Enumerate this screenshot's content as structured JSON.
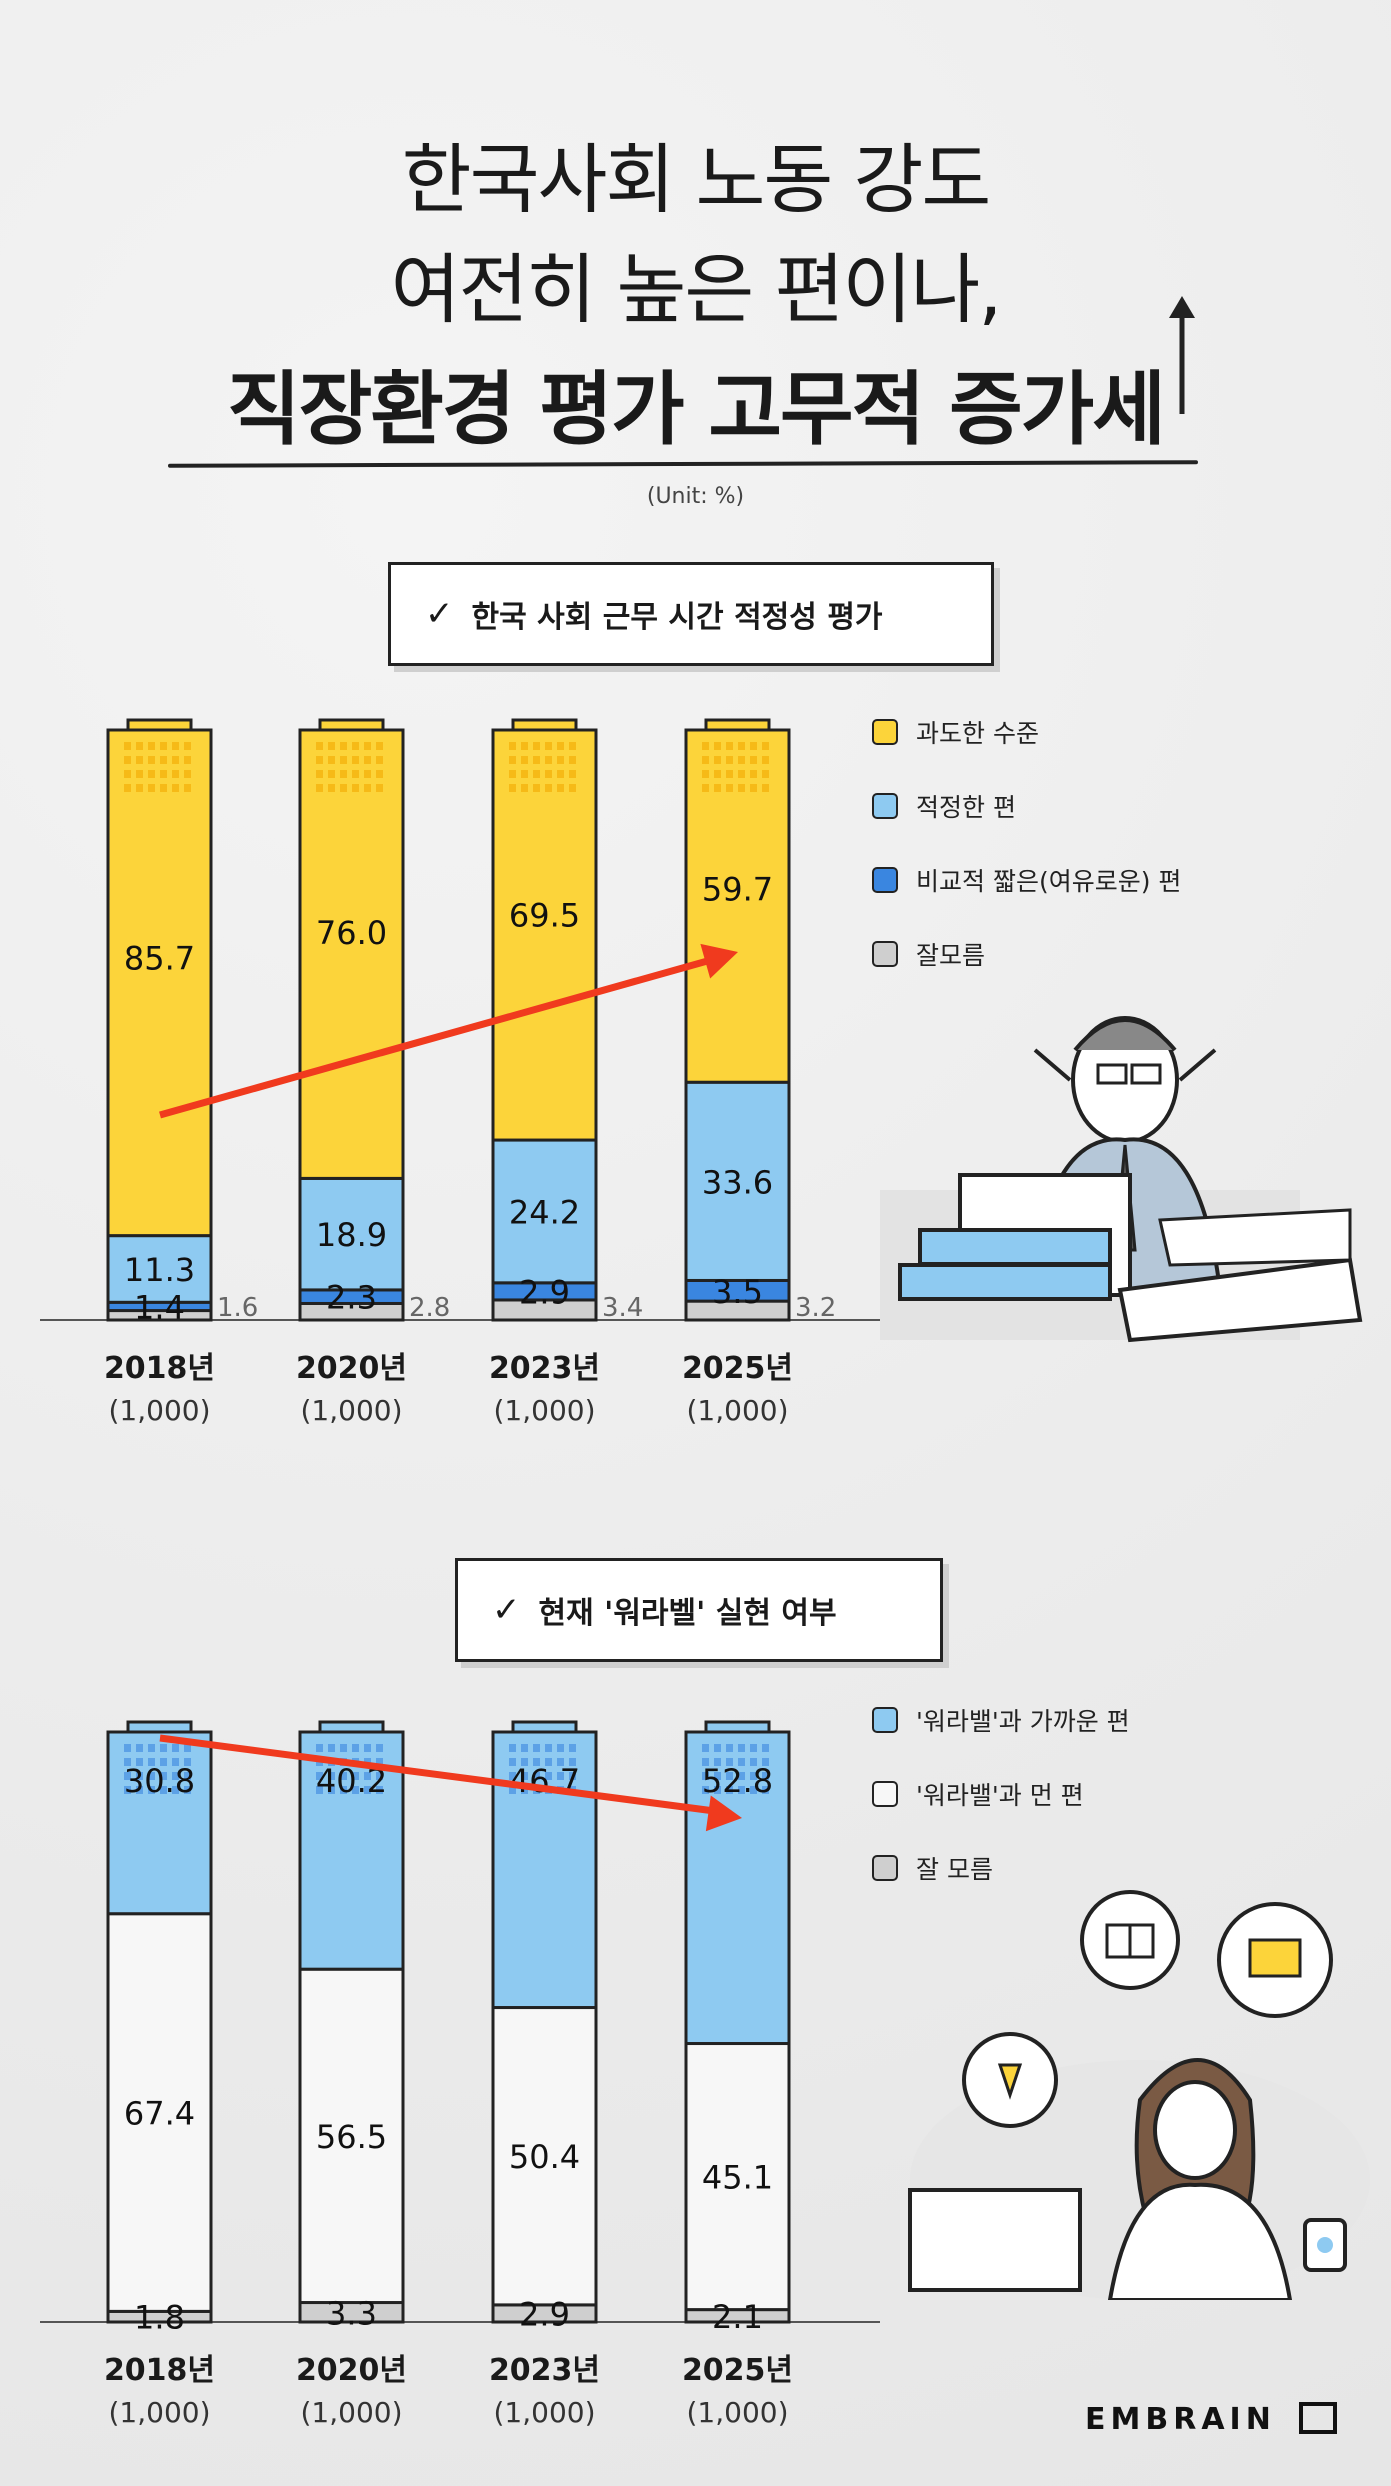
{
  "title": {
    "line1": "한국사회 노동 강도",
    "line2": "여전히 높은 편이나,",
    "line3": "직장환경 평가 고무적 증가세"
  },
  "unit": "(Unit: %)",
  "brand": "EMBRAIN",
  "colors": {
    "yellow": "#fcd43a",
    "lightblue": "#8ecaf1",
    "blue": "#3a86e0",
    "gray": "#cfcfcf",
    "white": "#f7f7f7",
    "arrow": "#f03a1e"
  },
  "chart_data": [
    {
      "type": "bar",
      "stacked": true,
      "title": "한국 사회 근무 시간 적정성 평가",
      "categories": [
        "2018년",
        "2020년",
        "2023년",
        "2025년"
      ],
      "sample_sizes": [
        "(1,000)",
        "(1,000)",
        "(1,000)",
        "(1,000)"
      ],
      "series": [
        {
          "name": "잘모름",
          "values": [
            1.6,
            2.8,
            3.4,
            3.2
          ],
          "color": "#cfcfcf"
        },
        {
          "name": "비교적 짧은(여유로운) 편",
          "values": [
            1.4,
            2.3,
            2.9,
            3.5
          ],
          "color": "#3a86e0"
        },
        {
          "name": "적정한 편",
          "values": [
            11.3,
            18.9,
            24.2,
            33.6
          ],
          "color": "#8ecaf1"
        },
        {
          "name": "과도한 수준",
          "values": [
            85.7,
            76.0,
            69.5,
            59.7
          ],
          "color": "#fcd43a"
        }
      ],
      "value_labels": {
        "잘모름": [
          "1.6",
          "2.8",
          "3.4",
          "3.2"
        ],
        "비교적 짧은(여유로운) 편": [
          "1.4",
          "2.3",
          "2.9",
          "3.5"
        ],
        "적정한 편": [
          "11.3",
          "18.9",
          "24.2",
          "33.6"
        ],
        "과도한 수준": [
          "85.7",
          "76.0",
          "69.5",
          "59.7"
        ]
      },
      "legend": [
        "과도한 수준",
        "적정한 편",
        "비교적 짧은(여유로운) 편",
        "잘모름"
      ],
      "ylim": [
        0,
        100
      ],
      "legend_position": "right"
    },
    {
      "type": "bar",
      "stacked": true,
      "title": "현재 '워라벨' 실현 여부",
      "categories": [
        "2018년",
        "2020년",
        "2023년",
        "2025년"
      ],
      "sample_sizes": [
        "(1,000)",
        "(1,000)",
        "(1,000)",
        "(1,000)"
      ],
      "series": [
        {
          "name": "잘 모름",
          "values": [
            1.8,
            3.3,
            2.9,
            2.1
          ],
          "color": "#cfcfcf"
        },
        {
          "name": "'워라밸'과 먼 편",
          "values": [
            67.4,
            56.5,
            50.4,
            45.1
          ],
          "color": "#f7f7f7"
        },
        {
          "name": "'워라밸'과 가까운 편",
          "values": [
            30.8,
            40.2,
            46.7,
            52.8
          ],
          "color": "#8ecaf1"
        }
      ],
      "value_labels": {
        "잘 모름": [
          "1.8",
          "3.3",
          "2.9",
          "2.1"
        ],
        "'워라밸'과 먼 편": [
          "67.4",
          "56.5",
          "50.4",
          "45.1"
        ],
        "'워라밸'과 가까운 편": [
          "30.8",
          "40.2",
          "46.7",
          "52.8"
        ]
      },
      "legend": [
        "'워라밸'과 가까운 편",
        "'워라밸'과 먼 편",
        "잘 모름"
      ],
      "ylim": [
        0,
        100
      ],
      "legend_position": "right"
    }
  ]
}
